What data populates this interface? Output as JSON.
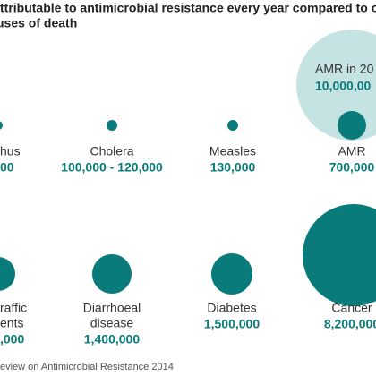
{
  "header": {
    "title_lines": [
      "ttributable to antimicrobial resistance every year compared to o",
      "uses of death"
    ]
  },
  "future": {
    "label": "AMR in 20",
    "figure": "10,000,00"
  },
  "causes": [
    {
      "label": [
        "hus"
      ],
      "figure": "00"
    },
    {
      "label": [
        "Cholera"
      ],
      "figure": "100,000 - 120,000"
    },
    {
      "label": [
        "Measles"
      ],
      "figure": "130,000"
    },
    {
      "label": [
        "AMR"
      ],
      "figure": "700,000"
    },
    {
      "label": [
        "raffic",
        "ents"
      ],
      "figure": ",000"
    },
    {
      "label": [
        "Diarrhoeal",
        "disease"
      ],
      "figure": "1,400,000"
    },
    {
      "label": [
        "Diabetes"
      ],
      "figure": "1,500,000"
    },
    {
      "label": [
        "Cancer"
      ],
      "figure": "8,200,000"
    }
  ],
  "source": "eview on Antimicrobial Resistance 2014"
}
